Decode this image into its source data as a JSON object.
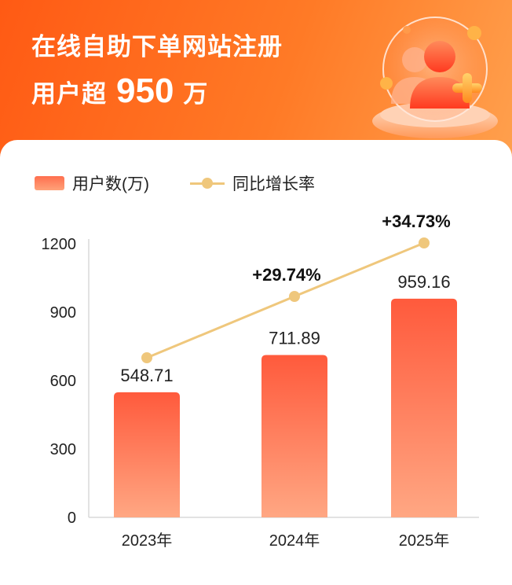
{
  "header": {
    "line1": "在线自助下单网站注册",
    "line2_prefix": "用户超",
    "line2_number": "950",
    "line2_suffix": "万"
  },
  "legend": {
    "bar_label": "用户数(万)",
    "line_label": "同比增长率"
  },
  "colors": {
    "header": "#ff6a1f",
    "bar_top": "#ff5a3c",
    "bar_bottom": "#ffa783",
    "line": "#efc77c"
  },
  "chart_data": {
    "type": "bar",
    "categories": [
      "2023年",
      "2024年",
      "2025年"
    ],
    "series": [
      {
        "name": "用户数(万)",
        "type": "bar",
        "values": [
          548.71,
          711.89,
          959.16
        ],
        "labels": [
          "548.71",
          "711.89",
          "959.16"
        ]
      },
      {
        "name": "同比增长率",
        "type": "line",
        "values": [
          null,
          29.74,
          34.73
        ],
        "labels": [
          "",
          "+29.74%",
          "+34.73%"
        ]
      }
    ],
    "yticks": [
      0,
      300,
      600,
      900,
      1200
    ],
    "ylim": [
      0,
      1200
    ],
    "grid": false,
    "legend_position": "top-left"
  }
}
